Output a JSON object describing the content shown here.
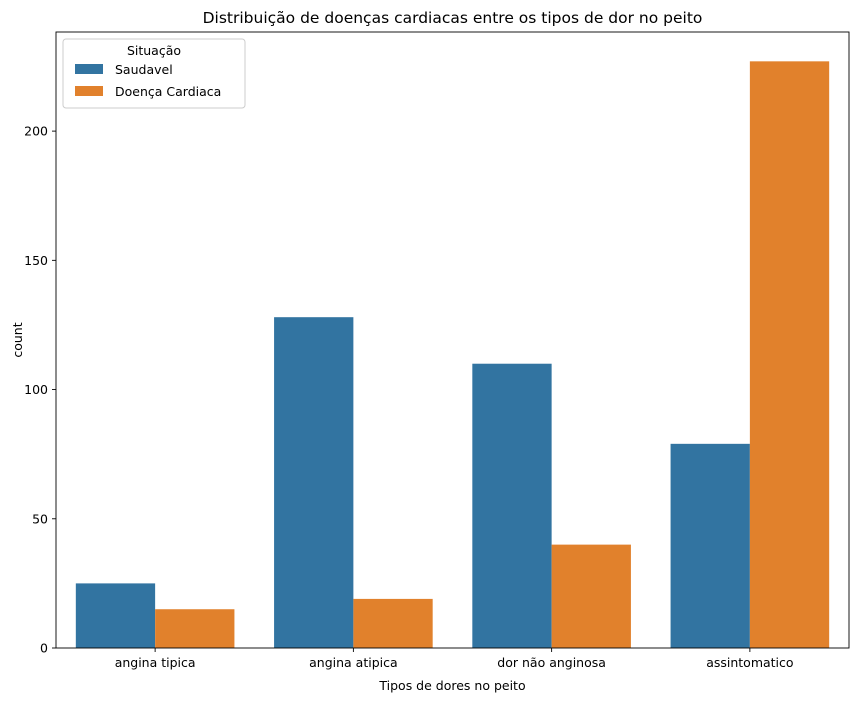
{
  "chart_data": {
    "type": "bar",
    "title": "Distribuição de doenças cardiacas entre os tipos de dor no peito",
    "xlabel": "Tipos de dores no peito",
    "ylabel": "count",
    "categories": [
      "angina tipica",
      "angina atipica",
      "dor não anginosa",
      "assintomatico"
    ],
    "series": [
      {
        "name": "Saudavel",
        "color": "#3274a1",
        "values": [
          25,
          128,
          110,
          79
        ]
      },
      {
        "name": "Doença Cardiaca",
        "color": "#e1812c",
        "values": [
          15,
          19,
          40,
          227
        ]
      }
    ],
    "ylim": [
      0,
      238.35
    ],
    "yticks": [
      0,
      50,
      100,
      150,
      200
    ],
    "grid": false,
    "legend": {
      "title": "Situação",
      "position": "top-left"
    }
  }
}
